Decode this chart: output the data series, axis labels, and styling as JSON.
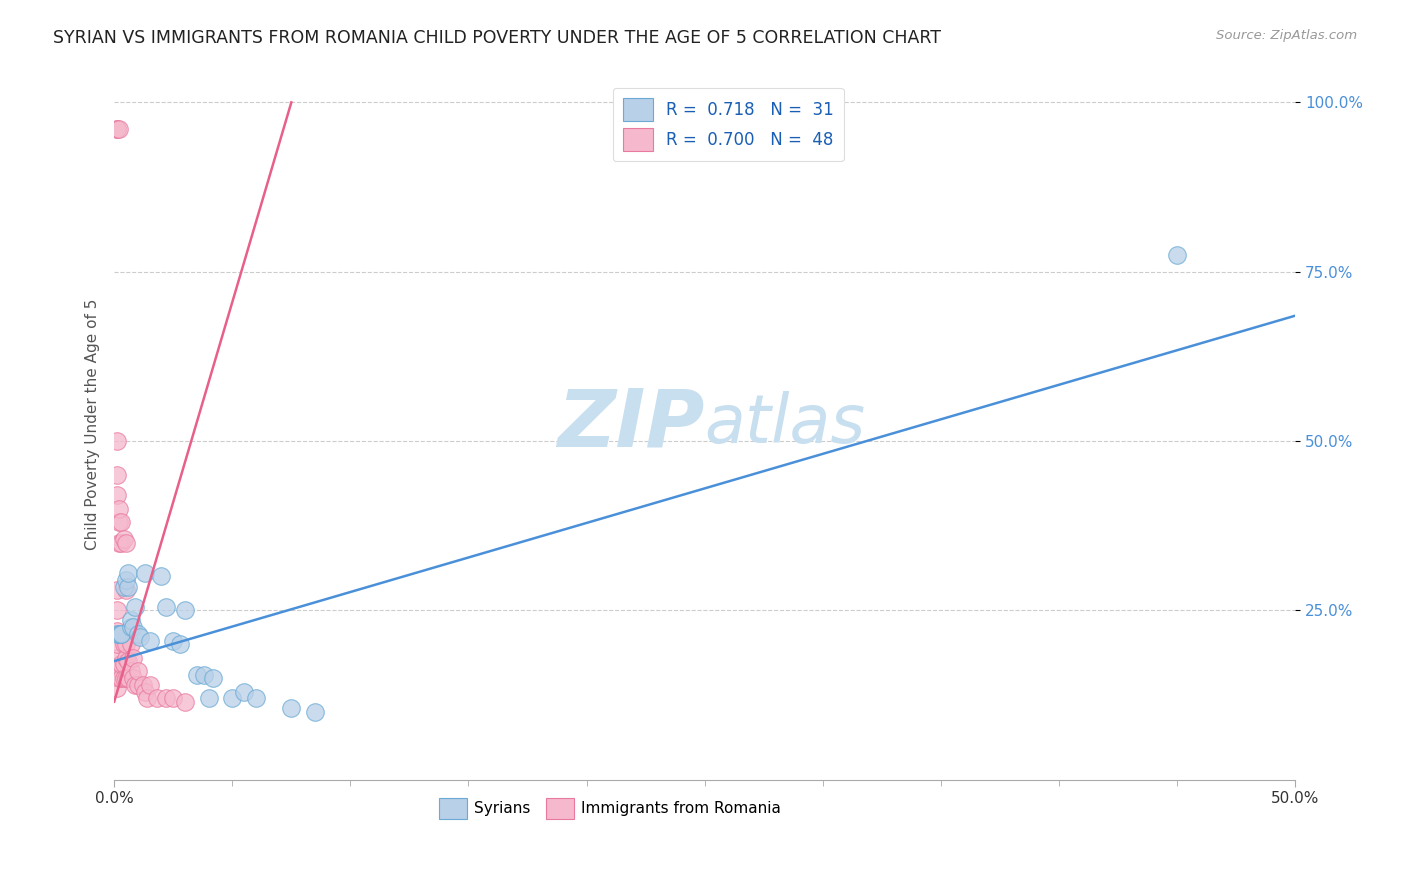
{
  "title": "SYRIAN VS IMMIGRANTS FROM ROMANIA CHILD POVERTY UNDER THE AGE OF 5 CORRELATION CHART",
  "source": "Source: ZipAtlas.com",
  "ylabel": "Child Poverty Under the Age of 5",
  "xlim": [
    0.0,
    0.5
  ],
  "ylim": [
    0.0,
    1.05
  ],
  "xticks_minor": [
    0.05,
    0.1,
    0.15,
    0.2,
    0.25,
    0.3,
    0.35,
    0.4,
    0.45
  ],
  "xtick_edge_labels": [
    [
      "0.0%",
      0.0
    ],
    [
      "50.0%",
      0.5
    ]
  ],
  "yticks": [
    0.25,
    0.5,
    0.75,
    1.0
  ],
  "ytick_labels": [
    "25.0%",
    "50.0%",
    "75.0%",
    "100.0%"
  ],
  "blue_color": "#b8d0e8",
  "pink_color": "#f5b8cc",
  "blue_edge_color": "#6aaad4",
  "pink_edge_color": "#e87aa0",
  "blue_line_color": "#4a90d9",
  "pink_line_color": "#e8608a",
  "blue_R": "0.718",
  "blue_N": "31",
  "pink_R": "0.700",
  "pink_N": "48",
  "watermark_zip": "ZIP",
  "watermark_atlas": "atlas",
  "watermark_color": "#c8dff0",
  "legend_label_blue": "Syrians",
  "legend_label_pink": "Immigrants from Romania",
  "blue_scatter": [
    [
      0.001,
      0.215
    ],
    [
      0.002,
      0.215
    ],
    [
      0.003,
      0.215
    ],
    [
      0.003,
      0.215
    ],
    [
      0.004,
      0.285
    ],
    [
      0.005,
      0.295
    ],
    [
      0.006,
      0.285
    ],
    [
      0.006,
      0.305
    ],
    [
      0.007,
      0.225
    ],
    [
      0.007,
      0.235
    ],
    [
      0.008,
      0.225
    ],
    [
      0.009,
      0.255
    ],
    [
      0.01,
      0.215
    ],
    [
      0.011,
      0.21
    ],
    [
      0.013,
      0.305
    ],
    [
      0.015,
      0.205
    ],
    [
      0.02,
      0.3
    ],
    [
      0.022,
      0.255
    ],
    [
      0.025,
      0.205
    ],
    [
      0.028,
      0.2
    ],
    [
      0.03,
      0.25
    ],
    [
      0.035,
      0.155
    ],
    [
      0.038,
      0.155
    ],
    [
      0.04,
      0.12
    ],
    [
      0.042,
      0.15
    ],
    [
      0.05,
      0.12
    ],
    [
      0.055,
      0.13
    ],
    [
      0.06,
      0.12
    ],
    [
      0.075,
      0.105
    ],
    [
      0.085,
      0.1
    ],
    [
      0.45,
      0.775
    ]
  ],
  "pink_scatter": [
    [
      0.001,
      0.155
    ],
    [
      0.001,
      0.135
    ],
    [
      0.001,
      0.18
    ],
    [
      0.001,
      0.2
    ],
    [
      0.001,
      0.22
    ],
    [
      0.001,
      0.25
    ],
    [
      0.001,
      0.28
    ],
    [
      0.001,
      0.42
    ],
    [
      0.001,
      0.45
    ],
    [
      0.001,
      0.5
    ],
    [
      0.001,
      0.96
    ],
    [
      0.001,
      0.96
    ],
    [
      0.002,
      0.15
    ],
    [
      0.002,
      0.165
    ],
    [
      0.002,
      0.35
    ],
    [
      0.002,
      0.38
    ],
    [
      0.002,
      0.4
    ],
    [
      0.002,
      0.96
    ],
    [
      0.003,
      0.15
    ],
    [
      0.003,
      0.17
    ],
    [
      0.003,
      0.35
    ],
    [
      0.003,
      0.38
    ],
    [
      0.004,
      0.15
    ],
    [
      0.004,
      0.17
    ],
    [
      0.004,
      0.2
    ],
    [
      0.004,
      0.355
    ],
    [
      0.005,
      0.15
    ],
    [
      0.005,
      0.18
    ],
    [
      0.005,
      0.2
    ],
    [
      0.005,
      0.28
    ],
    [
      0.005,
      0.35
    ],
    [
      0.006,
      0.15
    ],
    [
      0.006,
      0.175
    ],
    [
      0.007,
      0.16
    ],
    [
      0.007,
      0.2
    ],
    [
      0.008,
      0.15
    ],
    [
      0.008,
      0.18
    ],
    [
      0.009,
      0.14
    ],
    [
      0.01,
      0.14
    ],
    [
      0.01,
      0.16
    ],
    [
      0.012,
      0.14
    ],
    [
      0.013,
      0.13
    ],
    [
      0.014,
      0.12
    ],
    [
      0.015,
      0.14
    ],
    [
      0.018,
      0.12
    ],
    [
      0.022,
      0.12
    ],
    [
      0.025,
      0.12
    ],
    [
      0.03,
      0.115
    ]
  ],
  "blue_line_x": [
    0.0,
    0.5
  ],
  "blue_line_y": [
    0.175,
    0.685
  ],
  "pink_line_x": [
    0.0,
    0.075
  ],
  "pink_line_y": [
    0.115,
    1.0
  ]
}
